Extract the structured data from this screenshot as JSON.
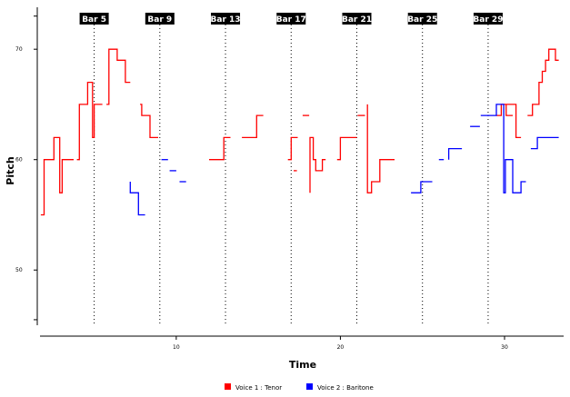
{
  "chart_data": {
    "type": "line",
    "xlabel": "Time",
    "ylabel": "Pitch",
    "xlim": [
      1.7,
      33.6
    ],
    "ylim": [
      45,
      73.8
    ],
    "x_ticks": [
      {
        "value": 10,
        "label": "10"
      },
      {
        "value": 20,
        "label": "20"
      },
      {
        "value": 30,
        "label": "30"
      }
    ],
    "y_ticks": [
      {
        "value": 50,
        "label": "50"
      },
      {
        "value": 60,
        "label": "60"
      },
      {
        "value": 70,
        "label": "70"
      }
    ],
    "bar_markers": [
      {
        "label": "Bar 5",
        "x": 5
      },
      {
        "label": "Bar 9",
        "x": 9
      },
      {
        "label": "Bar 13",
        "x": 13
      },
      {
        "label": "Bar 17",
        "x": 17
      },
      {
        "label": "Bar 21",
        "x": 21
      },
      {
        "label": "Bar 25",
        "x": 25
      },
      {
        "label": "Bar 29",
        "x": 29
      }
    ],
    "legend_position": "bottom",
    "series": [
      {
        "name": "Voice 1 : Tenor",
        "color": "#ff0000",
        "segments": [
          [
            [
              1.75,
              55
            ],
            [
              1.95,
              55
            ],
            [
              1.95,
              60
            ],
            [
              2.55,
              60
            ],
            [
              2.55,
              62
            ],
            [
              2.9,
              62
            ],
            [
              2.9,
              57
            ],
            [
              3.05,
              57
            ],
            [
              3.05,
              60
            ],
            [
              3.5,
              60
            ],
            [
              3.5,
              60
            ],
            [
              3.75,
              60
            ]
          ],
          [
            [
              3.95,
              60
            ],
            [
              4.1,
              60
            ],
            [
              4.1,
              65
            ],
            [
              4.6,
              65
            ],
            [
              4.6,
              67
            ],
            [
              4.9,
              67
            ],
            [
              4.9,
              62
            ],
            [
              5.0,
              62
            ],
            [
              5.0,
              65
            ],
            [
              5.5,
              65
            ]
          ],
          [
            [
              5.75,
              65
            ],
            [
              5.9,
              65
            ],
            [
              5.9,
              70
            ],
            [
              6.4,
              70
            ],
            [
              6.4,
              69
            ],
            [
              6.9,
              69
            ],
            [
              6.9,
              67
            ],
            [
              7.2,
              67
            ]
          ],
          [
            [
              7.8,
              65
            ],
            [
              7.9,
              65
            ],
            [
              7.9,
              64
            ],
            [
              8.4,
              64
            ],
            [
              8.4,
              62
            ],
            [
              8.9,
              62
            ]
          ],
          [
            [
              12.0,
              60
            ],
            [
              12.9,
              60
            ],
            [
              12.9,
              62
            ],
            [
              13.3,
              62
            ]
          ],
          [
            [
              14.0,
              62
            ],
            [
              14.9,
              62
            ],
            [
              14.9,
              64
            ],
            [
              15.3,
              64
            ]
          ],
          [
            [
              16.8,
              60
            ],
            [
              17.0,
              60
            ],
            [
              17.0,
              62
            ],
            [
              17.4,
              62
            ]
          ],
          [
            [
              17.15,
              59
            ],
            [
              17.35,
              59
            ]
          ],
          [
            [
              17.7,
              64
            ],
            [
              18.1,
              64
            ]
          ],
          [
            [
              18.15,
              57
            ],
            [
              18.15,
              62
            ],
            [
              18.35,
              62
            ],
            [
              18.35,
              60
            ],
            [
              18.5,
              60
            ],
            [
              18.5,
              59
            ],
            [
              18.9,
              59
            ],
            [
              18.9,
              60
            ],
            [
              19.1,
              60
            ]
          ],
          [
            [
              19.8,
              60
            ],
            [
              20.0,
              60
            ],
            [
              20.0,
              62
            ],
            [
              21.0,
              62
            ]
          ],
          [
            [
              21.05,
              64
            ],
            [
              21.5,
              64
            ]
          ],
          [
            [
              21.65,
              65
            ],
            [
              21.65,
              57
            ],
            [
              21.9,
              57
            ],
            [
              21.9,
              58
            ],
            [
              22.4,
              58
            ],
            [
              22.4,
              60
            ],
            [
              23.3,
              60
            ]
          ],
          [
            [
              29.5,
              64
            ],
            [
              29.8,
              64
            ],
            [
              29.8,
              65
            ],
            [
              30.7,
              65
            ],
            [
              30.7,
              62
            ],
            [
              31.0,
              62
            ]
          ],
          [
            [
              30.1,
              65
            ],
            [
              30.1,
              64
            ],
            [
              30.5,
              64
            ]
          ],
          [
            [
              31.4,
              64
            ],
            [
              31.7,
              64
            ],
            [
              31.7,
              65
            ],
            [
              32.1,
              65
            ],
            [
              32.1,
              67
            ],
            [
              32.3,
              67
            ],
            [
              32.3,
              68
            ],
            [
              32.5,
              68
            ],
            [
              32.5,
              69
            ],
            [
              32.7,
              69
            ],
            [
              32.7,
              70
            ],
            [
              33.1,
              70
            ],
            [
              33.1,
              69
            ],
            [
              33.3,
              69
            ]
          ]
        ]
      },
      {
        "name": "Voice 2 : Baritone",
        "color": "#0000ff",
        "segments": [
          [
            [
              7.2,
              58
            ],
            [
              7.2,
              57
            ],
            [
              7.7,
              57
            ],
            [
              7.7,
              55
            ],
            [
              8.1,
              55
            ]
          ],
          [
            [
              9.1,
              60
            ],
            [
              9.5,
              60
            ]
          ],
          [
            [
              9.6,
              59
            ],
            [
              10.0,
              59
            ]
          ],
          [
            [
              10.2,
              58
            ],
            [
              10.6,
              58
            ]
          ],
          [
            [
              24.3,
              57
            ],
            [
              24.9,
              57
            ],
            [
              24.9,
              58
            ],
            [
              25.6,
              58
            ]
          ],
          [
            [
              26.0,
              60
            ],
            [
              26.3,
              60
            ]
          ],
          [
            [
              26.6,
              60
            ],
            [
              26.6,
              61
            ],
            [
              27.4,
              61
            ]
          ],
          [
            [
              27.9,
              63
            ],
            [
              28.5,
              63
            ]
          ],
          [
            [
              28.55,
              64
            ],
            [
              29.5,
              64
            ],
            [
              29.5,
              65
            ],
            [
              29.95,
              65
            ],
            [
              29.95,
              57
            ],
            [
              30.05,
              57
            ],
            [
              30.05,
              60
            ],
            [
              30.5,
              60
            ],
            [
              30.5,
              57
            ],
            [
              31.0,
              57
            ],
            [
              31.0,
              58
            ],
            [
              31.3,
              58
            ]
          ],
          [
            [
              31.6,
              61
            ],
            [
              32.0,
              61
            ],
            [
              32.0,
              62
            ],
            [
              33.3,
              62
            ]
          ]
        ]
      }
    ]
  }
}
